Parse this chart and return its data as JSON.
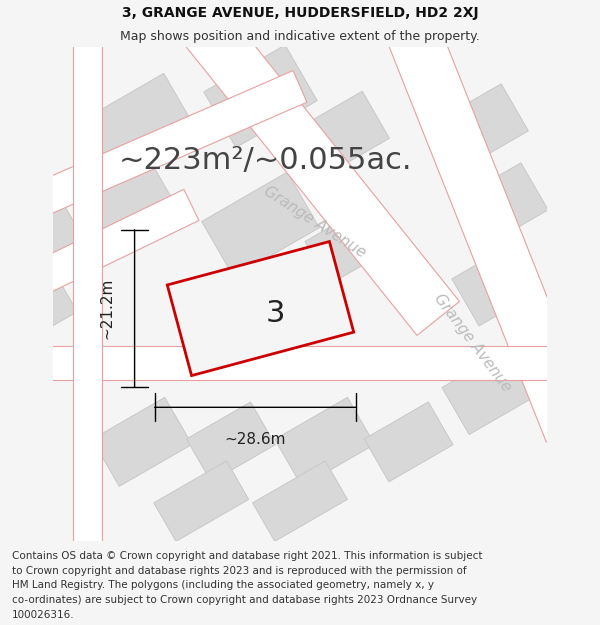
{
  "title_line1": "3, GRANGE AVENUE, HUDDERSFIELD, HD2 2XJ",
  "title_line2": "Map shows position and indicative extent of the property.",
  "area_text": "~223m²/~0.055ac.",
  "number_label": "3",
  "width_label": "~28.6m",
  "height_label": "~21.2m",
  "street_label1": "Grange Avenue",
  "street_label2": "Grange Avenue",
  "footer_lines": [
    "Contains OS data © Crown copyright and database right 2021. This information is subject",
    "to Crown copyright and database rights 2023 and is reproduced with the permission of",
    "HM Land Registry. The polygons (including the associated geometry, namely x, y",
    "co-ordinates) are subject to Crown copyright and database rights 2023 Ordnance Survey",
    "100026316."
  ],
  "bg_color": "#f5f5f5",
  "map_bg_color": "#f5f5f5",
  "road_color": "#ffffff",
  "road_line_color": "#e8a0a0",
  "building_color": "#d8d8d8",
  "building_edge_color": "#c8c8c8",
  "highlight_color": "#cc0000",
  "highlight_fill": "#f5f5f5",
  "footer_bg": "#ffffff",
  "title_fontsize": 10,
  "subtitle_fontsize": 9,
  "area_fontsize": 22,
  "number_fontsize": 22,
  "dim_fontsize": 11,
  "street_fontsize": 11,
  "footer_fontsize": 7.5
}
